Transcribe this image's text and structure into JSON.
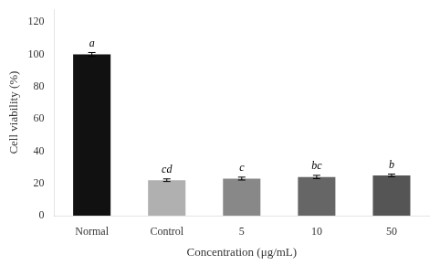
{
  "chart_data": {
    "type": "bar",
    "categories": [
      "Normal",
      "Control",
      "5",
      "10",
      "50"
    ],
    "values": [
      100.0,
      22.0,
      23.0,
      24.0,
      25.0
    ],
    "errors": [
      1.2,
      0.8,
      0.9,
      1.0,
      0.8
    ],
    "colors": [
      "#111111",
      "#b0b0b0",
      "#888888",
      "#666666",
      "#555555"
    ],
    "annotations": [
      "a",
      "cd",
      "c",
      "bc",
      "b"
    ],
    "xlabel": "Concentration (μg/mL)",
    "ylabel": "Cell viability (%)",
    "ylim": [
      0,
      128
    ],
    "yticks": [
      0,
      20,
      40,
      60,
      80,
      100,
      120
    ],
    "grid": false
  }
}
